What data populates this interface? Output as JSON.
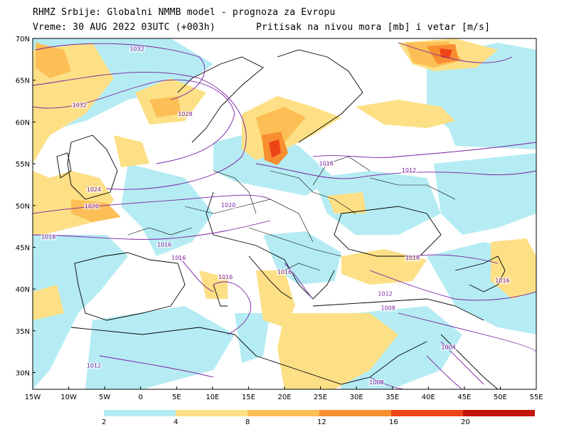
{
  "header": {
    "title": "RHMZ Srbije: Globalni NMMB model - prognoza za Evropu",
    "time": "Vreme: 30 AUG 2022 03UTC (+003h)",
    "field": "Pritisak na nivou mora [mb] i vetar [m/s]"
  },
  "map": {
    "lat_labels": [
      "70N",
      "65N",
      "60N",
      "55N",
      "50N",
      "45N",
      "40N",
      "35N",
      "30N"
    ],
    "lon_labels": [
      "15W",
      "10W",
      "5W",
      "0",
      "5E",
      "10E",
      "15E",
      "20E",
      "25E",
      "30E",
      "35E",
      "40E",
      "45E",
      "50E",
      "55E"
    ],
    "isobar_labels": [
      {
        "text": "1032",
        "lon": -0.5,
        "lat": 68.5
      },
      {
        "text": "1032",
        "lon": -8.5,
        "lat": 61.8
      },
      {
        "text": "1028",
        "lon": 6.2,
        "lat": 60.7
      },
      {
        "text": "1024",
        "lon": -6.5,
        "lat": 51.7
      },
      {
        "text": "1020",
        "lon": -6.8,
        "lat": 49.7
      },
      {
        "text": "1020",
        "lon": 12.2,
        "lat": 49.8
      },
      {
        "text": "1016",
        "lon": -12.8,
        "lat": 46.0
      },
      {
        "text": "1016",
        "lon": 3.3,
        "lat": 45.1
      },
      {
        "text": "1016",
        "lon": 5.3,
        "lat": 43.5
      },
      {
        "text": "1016",
        "lon": 11.8,
        "lat": 41.2
      },
      {
        "text": "1016",
        "lon": 20.0,
        "lat": 41.8
      },
      {
        "text": "1016",
        "lon": 25.8,
        "lat": 54.8
      },
      {
        "text": "1012",
        "lon": 37.3,
        "lat": 54.0
      },
      {
        "text": "1016",
        "lon": 37.8,
        "lat": 43.5
      },
      {
        "text": "1016",
        "lon": 50.3,
        "lat": 40.8
      },
      {
        "text": "1012",
        "lon": 34.0,
        "lat": 39.2
      },
      {
        "text": "1008",
        "lon": 34.4,
        "lat": 37.5
      },
      {
        "text": "1004",
        "lon": 42.8,
        "lat": 32.8
      },
      {
        "text": "1012",
        "lon": -6.5,
        "lat": 30.6
      },
      {
        "text": "1008",
        "lon": 32.8,
        "lat": 28.6
      }
    ]
  },
  "colorbar": {
    "labels": [
      "2",
      "4",
      "8",
      "12",
      "16",
      "20"
    ],
    "colors": [
      "#b5ecf3",
      "#fde086",
      "#fcbf55",
      "#f78e30",
      "#ee4518",
      "#c41608"
    ]
  }
}
